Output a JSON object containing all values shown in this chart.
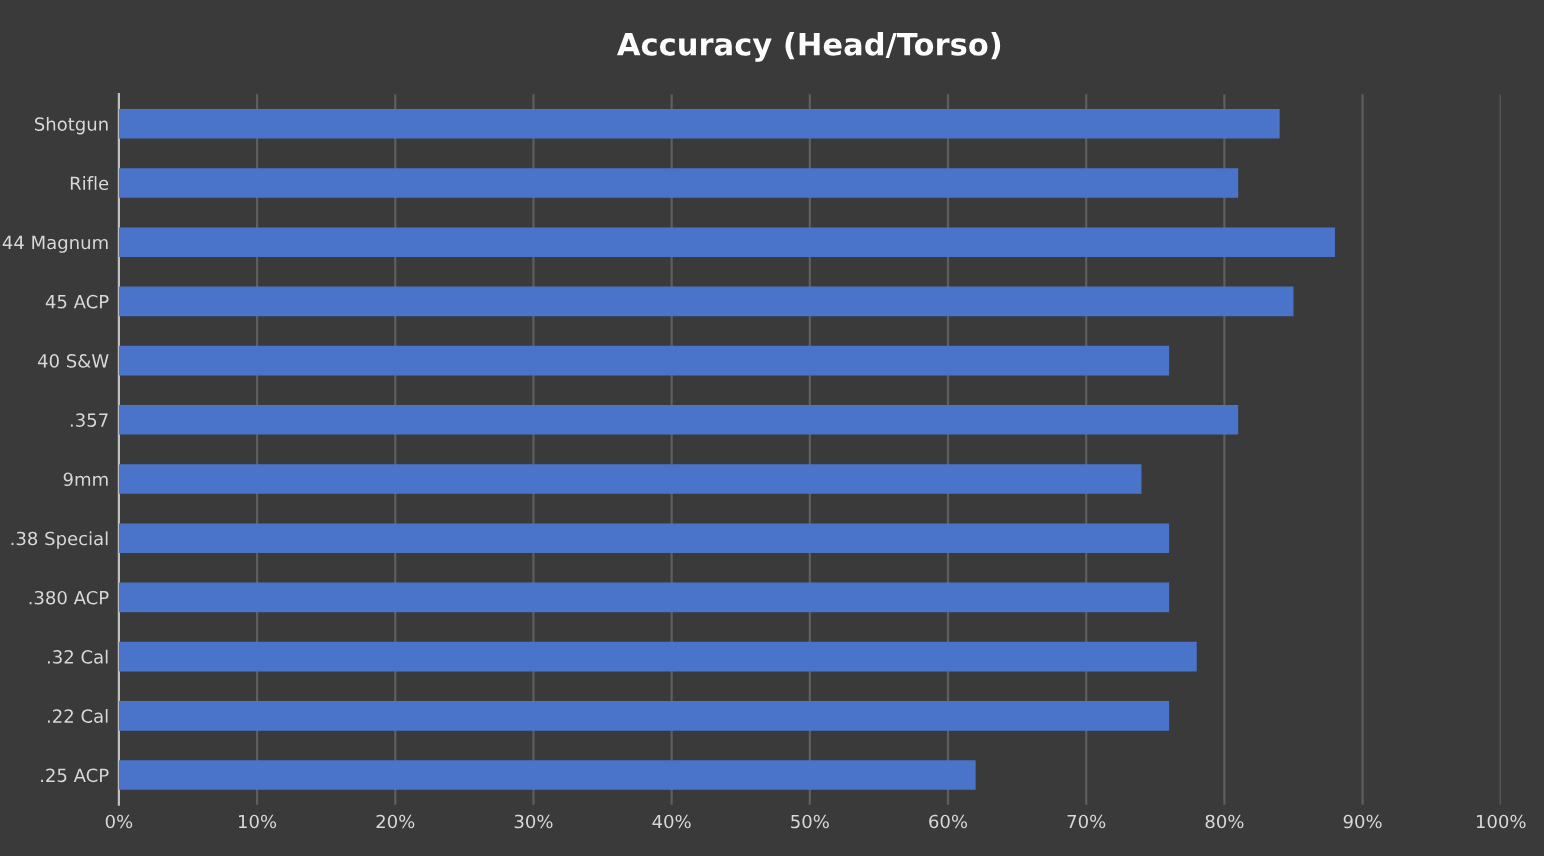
{
  "chart_data": {
    "type": "bar",
    "orientation": "horizontal",
    "title": "Accuracy (Head/Torso)",
    "categories": [
      "Shotgun",
      "Rifle",
      "44 Magnum",
      "45 ACP",
      "40 S&W",
      ".357",
      "9mm",
      ".38 Special",
      ".380 ACP",
      ".32 Cal",
      ".22 Cal",
      ".25 ACP"
    ],
    "values": [
      84,
      81,
      88,
      85,
      76,
      81,
      74,
      76,
      76,
      78,
      76,
      62
    ],
    "color": "#4a74c9",
    "xlim": [
      0,
      100
    ],
    "xticks": [
      {
        "value": 0,
        "label": "0%"
      },
      {
        "value": 10,
        "label": "10%"
      },
      {
        "value": 20,
        "label": "20%"
      },
      {
        "value": 30,
        "label": "30%"
      },
      {
        "value": 40,
        "label": "40%"
      },
      {
        "value": 50,
        "label": "50%"
      },
      {
        "value": 60,
        "label": "60%"
      },
      {
        "value": 70,
        "label": "70%"
      },
      {
        "value": 80,
        "label": "80%"
      },
      {
        "value": 90,
        "label": "90%"
      },
      {
        "value": 100,
        "label": "100%"
      }
    ],
    "grid": "x",
    "legend": false
  }
}
